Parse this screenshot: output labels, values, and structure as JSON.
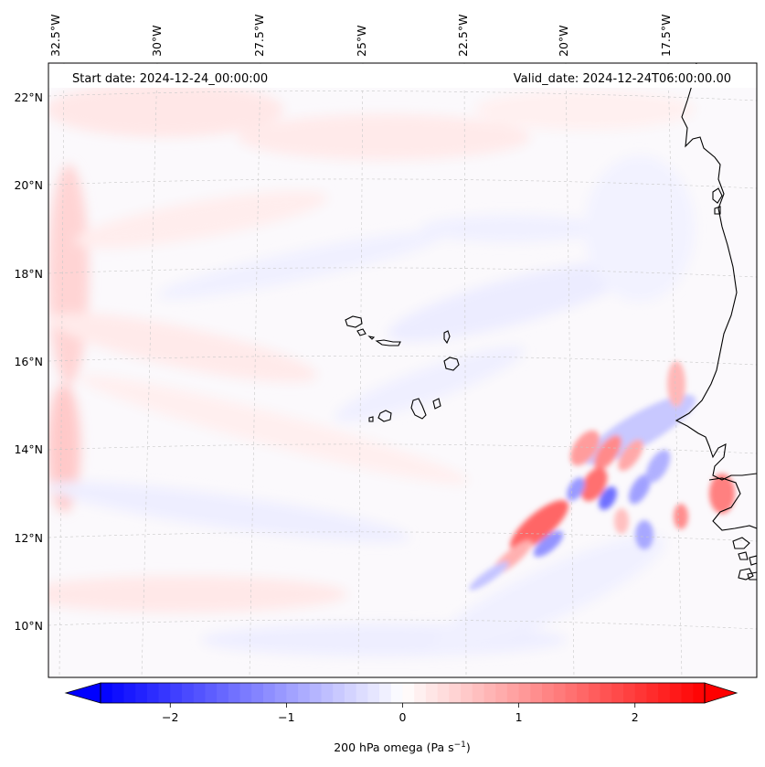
{
  "header": {
    "start_date": "Start date: 2024-12-24_00:00:00",
    "valid_date": "Valid_date: 2024-12-24T06:00:00.00"
  },
  "map": {
    "variable": "200 hPa omega",
    "units": "Pa s⁻¹",
    "lon_labels": [
      "32.5°W",
      "30°W",
      "27.5°W",
      "25°W",
      "22.5°W",
      "20°W",
      "17.5°W"
    ],
    "lat_labels": [
      "22°N",
      "20°N",
      "18°N",
      "16°N",
      "14°N",
      "12°N",
      "10°N"
    ],
    "gridlines": true,
    "island_group": "Cape Verde",
    "coastline_region": "West Africa (Senegal / Gambia / Guinea-Bissau)",
    "features": [
      {
        "kind": "ascent-band",
        "value": 2.0,
        "color": "#ff6a6a"
      },
      {
        "kind": "subsidence-band",
        "value": -1.2,
        "color": "#6b6bff"
      }
    ]
  },
  "colorbar": {
    "label": "200 hPa omega (Pa s",
    "label_sup": "−1",
    "label_close": ")",
    "ticks": [
      "−2",
      "−1",
      "0",
      "1",
      "2"
    ],
    "tick_values": [
      -2,
      -1,
      0,
      1,
      2
    ],
    "range": [
      -2.6,
      2.6
    ],
    "cmap": "bwr",
    "extend": "both",
    "colors": {
      "min": "#0000ff",
      "mid": "#ffffff",
      "max": "#ff0000"
    }
  }
}
